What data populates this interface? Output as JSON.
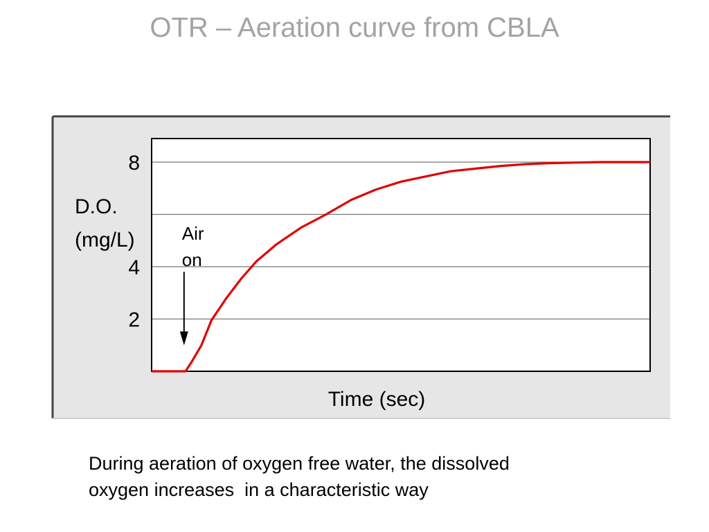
{
  "slide": {
    "title": "OTR – Aeration curve from CBLA",
    "caption_lines": [
      "During aeration of oxygen free water, the dissolved",
      "oxygen increases  in a characteristic way"
    ]
  },
  "colors": {
    "title": "#a3a3a3",
    "panel_background": "#e6e6e6",
    "plot_background": "#ffffff",
    "curve": "#e00000",
    "gridline": "#777777"
  },
  "chart_data": {
    "type": "line",
    "title": "",
    "xlabel": "Time (sec)",
    "ylabel_lines": [
      "D.O.",
      "(mg/L)"
    ],
    "ylim": [
      0,
      8.9
    ],
    "xlim": [
      0,
      100
    ],
    "yticks": [
      2,
      4,
      6,
      8
    ],
    "ytick_labels": [
      "2",
      "4",
      "",
      "8"
    ],
    "grid": true,
    "legend": "none",
    "series": [
      {
        "x": [
          0,
          6.8,
          8,
          10,
          12,
          15,
          18,
          21,
          25,
          30,
          35,
          40,
          45,
          50,
          55,
          60,
          65,
          70,
          75,
          80,
          85,
          90,
          95,
          100
        ],
        "y": [
          0,
          0,
          0.35,
          1,
          1.95,
          2.8,
          3.55,
          4.2,
          4.85,
          5.5,
          6.0,
          6.55,
          6.95,
          7.25,
          7.45,
          7.65,
          7.75,
          7.85,
          7.92,
          7.96,
          7.98,
          8.0,
          8.0,
          8.0
        ]
      }
    ],
    "annotations": [
      {
        "text_lines": [
          "Air",
          "on"
        ],
        "x": 6.5,
        "y_from": 3.8,
        "y_to": 1.1,
        "arrow": "down"
      }
    ]
  }
}
